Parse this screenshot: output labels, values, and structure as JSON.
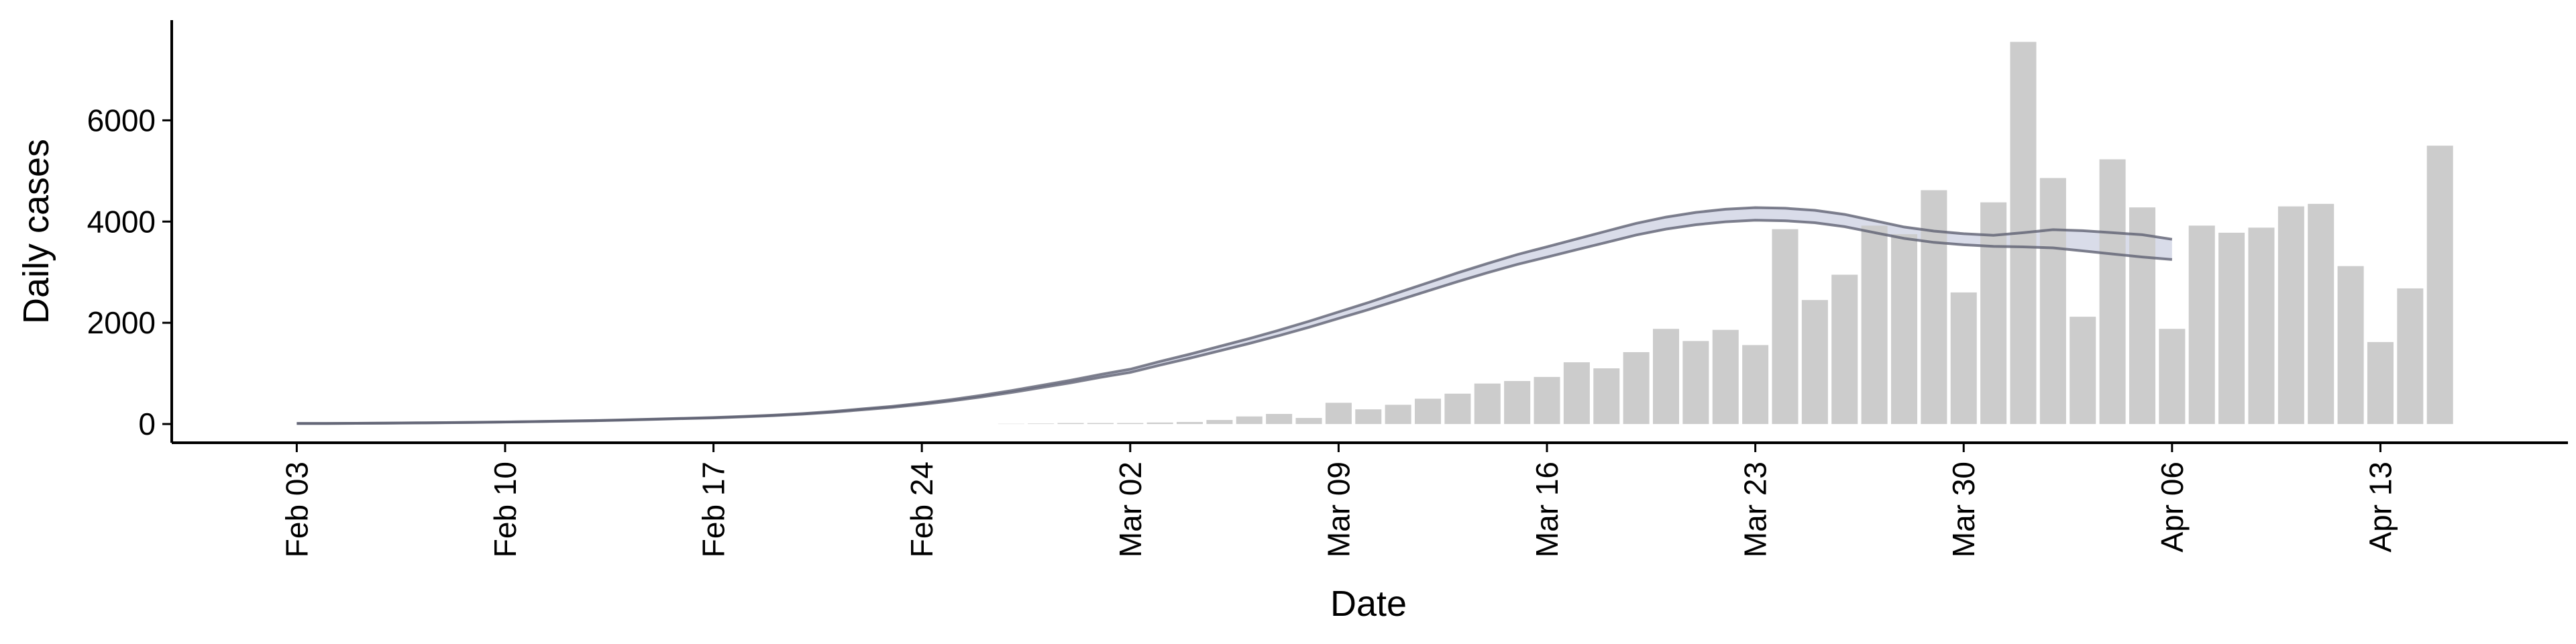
{
  "chart_data": {
    "type": "bar",
    "x_label": "Date",
    "y_label": "Daily cases",
    "categories": [
      "Feb 03",
      null,
      null,
      null,
      null,
      null,
      null,
      "Feb 10",
      null,
      null,
      null,
      null,
      null,
      null,
      "Feb 17",
      null,
      null,
      null,
      null,
      null,
      null,
      "Feb 24",
      null,
      null,
      null,
      null,
      null,
      null,
      "Mar 02",
      null,
      null,
      null,
      null,
      null,
      null,
      "Mar 09",
      null,
      null,
      null,
      null,
      null,
      null,
      "Mar 16",
      null,
      null,
      null,
      null,
      null,
      null,
      "Mar 23",
      null,
      null,
      null,
      null,
      null,
      null,
      "Mar 30",
      null,
      null,
      null,
      null,
      null,
      null,
      "Apr 06",
      null,
      null,
      null,
      null,
      null,
      null,
      "Apr 13",
      null,
      null
    ],
    "ylim": [
      -370,
      7980
    ],
    "yticks": [
      0,
      2000,
      4000,
      6000
    ],
    "series": [
      {
        "type": "bar",
        "color": "#cccccc",
        "values": [
          null,
          null,
          null,
          null,
          null,
          null,
          null,
          null,
          null,
          null,
          null,
          null,
          null,
          null,
          null,
          null,
          null,
          null,
          null,
          null,
          null,
          null,
          null,
          null,
          5,
          10,
          20,
          20,
          20,
          30,
          40,
          80,
          150,
          200,
          120,
          420,
          290,
          380,
          500,
          600,
          800,
          850,
          930,
          1220,
          1100,
          1420,
          1880,
          1640,
          1860,
          1560,
          3850,
          2450,
          2950,
          3920,
          3750,
          4620,
          2600,
          4380,
          7550,
          4860,
          2120,
          5230,
          4280,
          1880,
          3920,
          3780,
          3880,
          4300,
          4350,
          3120,
          1620,
          2680,
          5500
        ]
      },
      {
        "type": "line",
        "color": "#5e6072",
        "values": [
          10,
          12,
          15,
          17,
          21,
          26,
          32,
          39,
          47,
          55,
          65,
          78,
          92,
          107,
          121,
          141,
          165,
          194,
          233,
          281,
          330,
          388,
          456,
          534,
          621,
          718,
          815,
          922,
          1019,
          1164,
          1300,
          1445,
          1591,
          1746,
          1911,
          2086,
          2260,
          2444,
          2629,
          2813,
          2988,
          3153,
          3298,
          3444,
          3589,
          3735,
          3851,
          3938,
          3996,
          4026,
          4016,
          3977,
          3899,
          3783,
          3667,
          3589,
          3541,
          3511,
          3500,
          3480,
          3420,
          3360,
          3300,
          3250,
          null,
          null,
          null,
          null,
          null,
          null,
          null,
          null,
          null
        ]
      },
      {
        "type": "line",
        "color": "#5e6072",
        "values": [
          10,
          12,
          15,
          19,
          23,
          28,
          34,
          41,
          49,
          59,
          69,
          82,
          98,
          113,
          129,
          149,
          175,
          206,
          247,
          299,
          350,
          412,
          484,
          566,
          659,
          762,
          865,
          979,
          1082,
          1236,
          1380,
          1535,
          1689,
          1854,
          2029,
          2215,
          2400,
          2596,
          2791,
          2987,
          3172,
          3348,
          3502,
          3657,
          3811,
          3966,
          4089,
          4182,
          4244,
          4275,
          4264,
          4223,
          4141,
          4017,
          3893,
          3811,
          3760,
          3730,
          3780,
          3840,
          3820,
          3780,
          3740,
          3650,
          null,
          null,
          null,
          null,
          null,
          null,
          null,
          null,
          null
        ]
      }
    ]
  }
}
